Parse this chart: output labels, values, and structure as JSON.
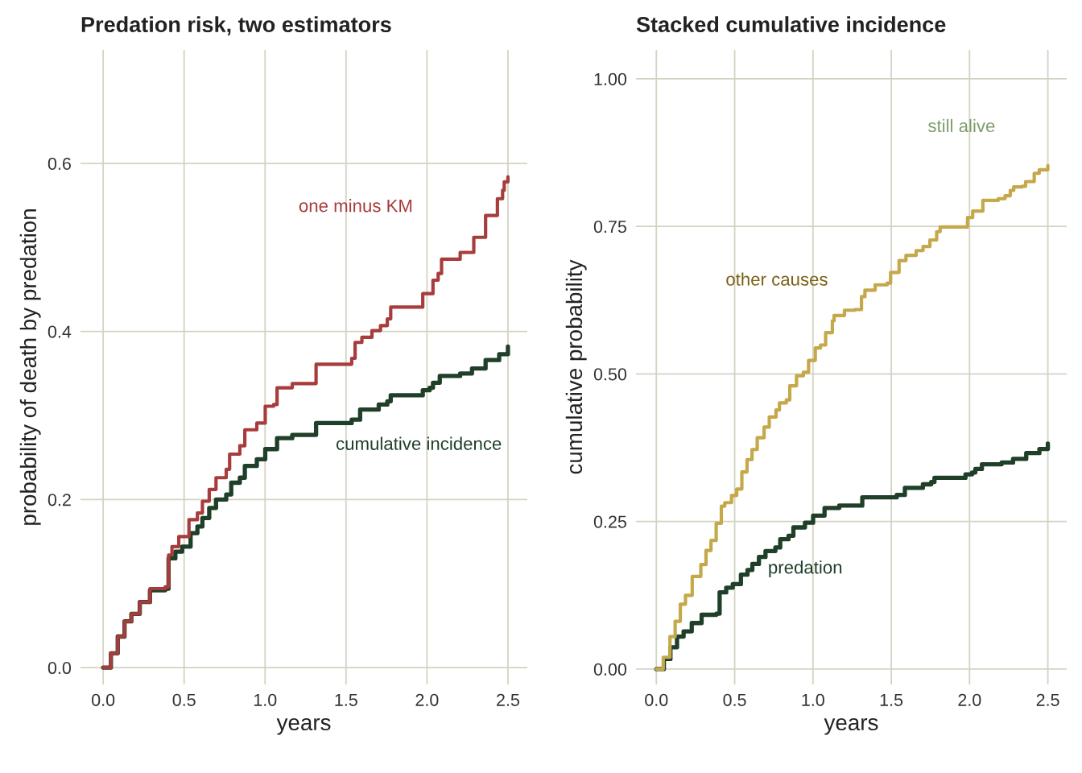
{
  "chart_data": [
    {
      "type": "step",
      "title": "Predation risk, two estimators",
      "xlabel": "years",
      "ylabel": "probability of death by predation",
      "xlim": [
        -0.14,
        2.62
      ],
      "ylim": [
        -0.02,
        0.735
      ],
      "xticks": [
        {
          "value": 0,
          "label": "0.0"
        },
        {
          "value": 0.5,
          "label": "0.5"
        },
        {
          "value": 1,
          "label": "1.0"
        },
        {
          "value": 1.5,
          "label": "1.5"
        },
        {
          "value": 2,
          "label": "2.0"
        },
        {
          "value": 2.5,
          "label": "2.5"
        }
      ],
      "yticks": [
        {
          "value": 0,
          "label": "0.0"
        },
        {
          "value": 0.2,
          "label": "0.2"
        },
        {
          "value": 0.4,
          "label": "0.4"
        },
        {
          "value": 0.6,
          "label": "0.6"
        }
      ],
      "grid": true,
      "legend": false,
      "series": [
        {
          "name": "one minus KM",
          "color": "#a83c3c",
          "x": [
            0,
            0.048,
            0.09,
            0.132,
            0.174,
            0.226,
            0.289,
            0.383,
            0.404,
            0.425,
            0.467,
            0.519,
            0.53,
            0.582,
            0.613,
            0.655,
            0.697,
            0.76,
            0.781,
            0.844,
            0.875,
            0.949,
            1.001,
            1.053,
            1.074,
            1.168,
            1.315,
            1.535,
            1.556,
            1.598,
            1.66,
            1.713,
            1.755,
            1.776,
            1.974,
            2.037,
            2.069,
            2.09,
            2.205,
            2.289,
            2.362,
            2.435,
            2.467,
            2.477,
            2.5
          ],
          "values": [
            0,
            0.017,
            0.037,
            0.055,
            0.064,
            0.078,
            0.094,
            0.096,
            0.134,
            0.144,
            0.156,
            0.156,
            0.176,
            0.184,
            0.198,
            0.212,
            0.226,
            0.236,
            0.254,
            0.264,
            0.283,
            0.291,
            0.311,
            0.313,
            0.333,
            0.338,
            0.361,
            0.368,
            0.387,
            0.393,
            0.401,
            0.407,
            0.415,
            0.429,
            0.445,
            0.461,
            0.469,
            0.486,
            0.494,
            0.512,
            0.538,
            0.558,
            0.568,
            0.578,
            0.584
          ]
        },
        {
          "name": "cumulative incidence",
          "color": "#1f3f29",
          "x": [
            0,
            0.048,
            0.09,
            0.132,
            0.174,
            0.226,
            0.289,
            0.383,
            0.404,
            0.446,
            0.488,
            0.54,
            0.582,
            0.613,
            0.655,
            0.697,
            0.76,
            0.791,
            0.844,
            0.875,
            0.949,
            1.001,
            1.074,
            1.168,
            1.315,
            1.535,
            1.587,
            1.702,
            1.755,
            1.776,
            1.974,
            2.016,
            2.037,
            2.079,
            2.205,
            2.278,
            2.362,
            2.446,
            2.5
          ],
          "values": [
            0,
            0.017,
            0.037,
            0.055,
            0.064,
            0.078,
            0.092,
            0.094,
            0.13,
            0.138,
            0.144,
            0.16,
            0.168,
            0.178,
            0.19,
            0.2,
            0.206,
            0.22,
            0.226,
            0.24,
            0.248,
            0.26,
            0.273,
            0.277,
            0.291,
            0.295,
            0.307,
            0.313,
            0.317,
            0.324,
            0.33,
            0.333,
            0.339,
            0.347,
            0.35,
            0.356,
            0.366,
            0.373,
            0.382
          ]
        }
      ]
    },
    {
      "type": "step",
      "title": "Stacked cumulative incidence",
      "xlabel": "years",
      "ylabel": "cumulative probability",
      "xlim": [
        -0.13,
        2.62
      ],
      "ylim": [
        -0.026,
        1.049
      ],
      "xticks": [
        {
          "value": 0,
          "label": "0.0"
        },
        {
          "value": 0.5,
          "label": "0.5"
        },
        {
          "value": 1,
          "label": "1.0"
        },
        {
          "value": 1.5,
          "label": "1.5"
        },
        {
          "value": 2,
          "label": "2.0"
        },
        {
          "value": 2.5,
          "label": "2.5"
        }
      ],
      "yticks": [
        {
          "value": 0,
          "label": "0.00"
        },
        {
          "value": 0.25,
          "label": "0.25"
        },
        {
          "value": 0.5,
          "label": "0.50"
        },
        {
          "value": 0.75,
          "label": "0.75"
        },
        {
          "value": 1,
          "label": "1.00"
        }
      ],
      "grid": true,
      "legend": false,
      "series": [
        {
          "color": "#c4a84a",
          "x": [
            0,
            0.044,
            0.087,
            0.12,
            0.153,
            0.186,
            0.229,
            0.284,
            0.317,
            0.349,
            0.382,
            0.415,
            0.437,
            0.48,
            0.513,
            0.546,
            0.579,
            0.611,
            0.644,
            0.688,
            0.721,
            0.764,
            0.786,
            0.83,
            0.852,
            0.895,
            0.939,
            0.972,
            1.015,
            1.048,
            1.081,
            1.124,
            1.135,
            1.201,
            1.266,
            1.31,
            1.332,
            1.397,
            1.474,
            1.496,
            1.55,
            1.594,
            1.659,
            1.703,
            1.747,
            1.79,
            1.812,
            1.943,
            1.987,
            2.02,
            2.085,
            2.183,
            2.227,
            2.26,
            2.282,
            2.336,
            2.358,
            2.413,
            2.445,
            2.5
          ],
          "values": [
            0,
            0.02,
            0.055,
            0.081,
            0.11,
            0.125,
            0.157,
            0.177,
            0.201,
            0.218,
            0.247,
            0.276,
            0.282,
            0.294,
            0.305,
            0.334,
            0.355,
            0.372,
            0.392,
            0.41,
            0.427,
            0.439,
            0.451,
            0.456,
            0.48,
            0.497,
            0.503,
            0.523,
            0.544,
            0.549,
            0.57,
            0.59,
            0.599,
            0.608,
            0.609,
            0.631,
            0.642,
            0.651,
            0.654,
            0.672,
            0.692,
            0.701,
            0.709,
            0.716,
            0.727,
            0.741,
            0.749,
            0.749,
            0.765,
            0.776,
            0.794,
            0.797,
            0.802,
            0.811,
            0.817,
            0.818,
            0.826,
            0.84,
            0.846,
            0.853
          ]
        },
        {
          "color": "#1f3f29",
          "x": [
            0,
            0.048,
            0.09,
            0.132,
            0.174,
            0.226,
            0.289,
            0.383,
            0.404,
            0.446,
            0.488,
            0.54,
            0.582,
            0.613,
            0.655,
            0.697,
            0.76,
            0.791,
            0.844,
            0.875,
            0.949,
            1.001,
            1.074,
            1.168,
            1.315,
            1.535,
            1.587,
            1.702,
            1.755,
            1.776,
            1.974,
            2.016,
            2.037,
            2.079,
            2.205,
            2.278,
            2.362,
            2.446,
            2.5
          ],
          "values": [
            0,
            0.017,
            0.037,
            0.055,
            0.064,
            0.078,
            0.092,
            0.094,
            0.13,
            0.138,
            0.144,
            0.16,
            0.168,
            0.178,
            0.19,
            0.2,
            0.206,
            0.22,
            0.226,
            0.24,
            0.248,
            0.26,
            0.273,
            0.277,
            0.291,
            0.295,
            0.307,
            0.313,
            0.317,
            0.324,
            0.33,
            0.333,
            0.339,
            0.347,
            0.35,
            0.356,
            0.366,
            0.373,
            0.382
          ]
        }
      ],
      "annotations": [
        "still alive",
        "other causes",
        "predation"
      ]
    }
  ]
}
